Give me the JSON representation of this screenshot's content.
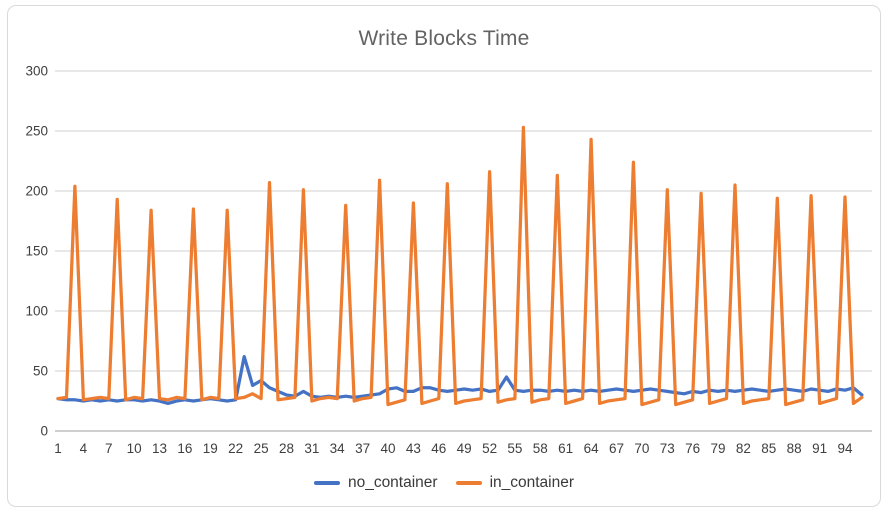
{
  "page": {
    "background": "#FFFFFF",
    "card_border": "#D7D9DB"
  },
  "chart_data": {
    "type": "line",
    "title": "Write Blocks Time",
    "xlabel": "",
    "ylabel": "",
    "ylim": [
      0,
      300
    ],
    "ytick_step": 50,
    "grid": true,
    "legend_position": "bottom",
    "grid_color": "#DADADA",
    "axis_color": "#BDBDBD",
    "title_color": "#636363",
    "tick_color": "#3F3F3F",
    "xticks": [
      1,
      4,
      7,
      10,
      13,
      16,
      19,
      22,
      25,
      28,
      31,
      34,
      37,
      40,
      43,
      46,
      49,
      52,
      55,
      58,
      61,
      64,
      67,
      70,
      73,
      76,
      79,
      82,
      85,
      88,
      91,
      94
    ],
    "x": [
      1,
      2,
      3,
      4,
      5,
      6,
      7,
      8,
      9,
      10,
      11,
      12,
      13,
      14,
      15,
      16,
      17,
      18,
      19,
      20,
      21,
      22,
      23,
      24,
      25,
      26,
      27,
      28,
      29,
      30,
      31,
      32,
      33,
      34,
      35,
      36,
      37,
      38,
      39,
      40,
      41,
      42,
      43,
      44,
      45,
      46,
      47,
      48,
      49,
      50,
      51,
      52,
      53,
      54,
      55,
      56,
      57,
      58,
      59,
      60,
      61,
      62,
      63,
      64,
      65,
      66,
      67,
      68,
      69,
      70,
      71,
      72,
      73,
      74,
      75,
      76,
      77,
      78,
      79,
      80,
      81,
      82,
      83,
      84,
      85,
      86,
      87,
      88,
      89,
      90,
      91,
      92,
      93,
      94,
      95,
      96
    ],
    "series": [
      {
        "name": "no_container",
        "color": "#4472C4",
        "values": [
          27,
          26,
          26,
          25,
          26,
          25,
          26,
          25,
          26,
          26,
          25,
          26,
          25,
          23,
          25,
          26,
          25,
          26,
          27,
          26,
          25,
          26,
          62,
          38,
          42,
          36,
          33,
          30,
          29,
          33,
          29,
          28,
          29,
          28,
          29,
          28,
          29,
          30,
          31,
          35,
          36,
          33,
          33,
          36,
          36,
          34,
          33,
          34,
          35,
          34,
          35,
          33,
          34,
          45,
          34,
          33,
          34,
          34,
          33,
          34,
          33,
          34,
          33,
          34,
          33,
          34,
          35,
          34,
          33,
          34,
          35,
          34,
          33,
          32,
          31,
          33,
          32,
          34,
          33,
          34,
          33,
          34,
          35,
          34,
          33,
          34,
          35,
          34,
          33,
          35,
          34,
          33,
          35,
          34,
          36,
          30
        ]
      },
      {
        "name": "in_container",
        "color": "#ED7D31",
        "values": [
          27,
          28,
          204,
          26,
          27,
          28,
          27,
          193,
          26,
          28,
          27,
          184,
          27,
          26,
          28,
          27,
          185,
          26,
          28,
          27,
          184,
          27,
          28,
          31,
          27,
          207,
          26,
          27,
          28,
          201,
          25,
          27,
          28,
          27,
          188,
          25,
          27,
          28,
          209,
          22,
          24,
          26,
          190,
          23,
          25,
          27,
          206,
          23,
          25,
          26,
          27,
          216,
          24,
          26,
          27,
          253,
          24,
          26,
          27,
          213,
          23,
          25,
          27,
          243,
          23,
          25,
          26,
          27,
          224,
          22,
          24,
          26,
          201,
          22,
          24,
          26,
          198,
          23,
          25,
          27,
          205,
          23,
          25,
          26,
          27,
          194,
          22,
          24,
          26,
          196,
          23,
          25,
          27,
          195,
          23,
          28
        ]
      }
    ]
  }
}
